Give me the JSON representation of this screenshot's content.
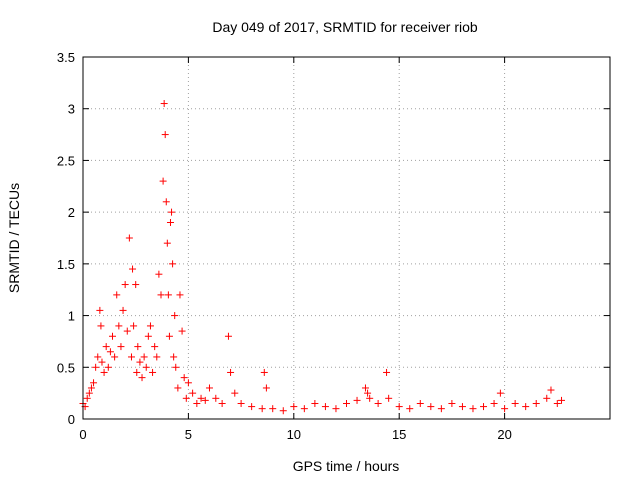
{
  "chart_data": {
    "type": "scatter",
    "title": "Day 049 of 2017, SRMTID for receiver riob",
    "xlabel": "GPS time / hours",
    "ylabel": "SRMTID / TECUs",
    "xlim": [
      0,
      25
    ],
    "ylim": [
      0,
      3.5
    ],
    "x_ticks": [
      0,
      5,
      10,
      15,
      20
    ],
    "x_tick_labels": [
      "0",
      "5",
      "10",
      "15",
      "20"
    ],
    "y_ticks": [
      0,
      0.5,
      1,
      1.5,
      2,
      2.5,
      3,
      3.5
    ],
    "y_tick_labels": [
      "0",
      "0.5",
      "1",
      "1.5",
      "2",
      "2.5",
      "3",
      "3.5"
    ],
    "grid": true,
    "marker": "plus",
    "series": [
      {
        "name": "SRMTID",
        "color": "#ff0000",
        "x": [
          0.0,
          0.1,
          0.2,
          0.3,
          0.4,
          0.5,
          0.6,
          0.7,
          0.8,
          0.85,
          0.9,
          1.0,
          1.1,
          1.2,
          1.3,
          1.4,
          1.5,
          1.6,
          1.7,
          1.8,
          1.9,
          2.0,
          2.1,
          2.2,
          2.3,
          2.35,
          2.4,
          2.5,
          2.55,
          2.6,
          2.7,
          2.8,
          2.9,
          3.0,
          3.1,
          3.2,
          3.3,
          3.4,
          3.5,
          3.6,
          3.7,
          3.8,
          3.85,
          3.9,
          3.95,
          4.0,
          4.05,
          4.1,
          4.15,
          4.2,
          4.25,
          4.3,
          4.35,
          4.4,
          4.5,
          4.6,
          4.7,
          4.8,
          4.9,
          5.0,
          5.2,
          5.4,
          5.6,
          5.8,
          6.0,
          6.3,
          6.6,
          6.9,
          7.0,
          7.2,
          7.5,
          8.0,
          8.5,
          8.6,
          8.7,
          9.0,
          9.5,
          10.0,
          10.5,
          11.0,
          11.5,
          12.0,
          12.5,
          13.0,
          13.4,
          13.5,
          13.6,
          14.0,
          14.4,
          14.5,
          15.0,
          15.5,
          16.0,
          16.5,
          17.0,
          17.5,
          18.0,
          18.5,
          19.0,
          19.5,
          19.8,
          20.0,
          20.5,
          21.0,
          21.5,
          22.0,
          22.2,
          22.5,
          22.7
        ],
        "y": [
          0.15,
          0.12,
          0.2,
          0.25,
          0.3,
          0.35,
          0.5,
          0.6,
          1.05,
          0.9,
          0.55,
          0.45,
          0.7,
          0.5,
          0.65,
          0.8,
          0.6,
          1.2,
          0.9,
          0.7,
          1.05,
          1.3,
          0.85,
          1.75,
          0.6,
          1.45,
          0.9,
          1.3,
          0.45,
          0.7,
          0.55,
          0.4,
          0.6,
          0.5,
          0.8,
          0.9,
          0.45,
          0.7,
          0.6,
          1.4,
          1.2,
          2.3,
          3.05,
          2.75,
          2.1,
          1.7,
          1.2,
          0.8,
          1.9,
          2.0,
          1.5,
          0.6,
          1.0,
          0.5,
          0.3,
          1.2,
          0.85,
          0.4,
          0.2,
          0.35,
          0.25,
          0.15,
          0.2,
          0.18,
          0.3,
          0.2,
          0.15,
          0.8,
          0.45,
          0.25,
          0.15,
          0.12,
          0.1,
          0.45,
          0.3,
          0.1,
          0.08,
          0.12,
          0.1,
          0.15,
          0.12,
          0.1,
          0.15,
          0.18,
          0.3,
          0.25,
          0.2,
          0.15,
          0.45,
          0.2,
          0.12,
          0.1,
          0.15,
          0.12,
          0.1,
          0.15,
          0.12,
          0.1,
          0.12,
          0.15,
          0.25,
          0.1,
          0.15,
          0.12,
          0.15,
          0.2,
          0.28,
          0.15,
          0.18
        ]
      }
    ]
  }
}
